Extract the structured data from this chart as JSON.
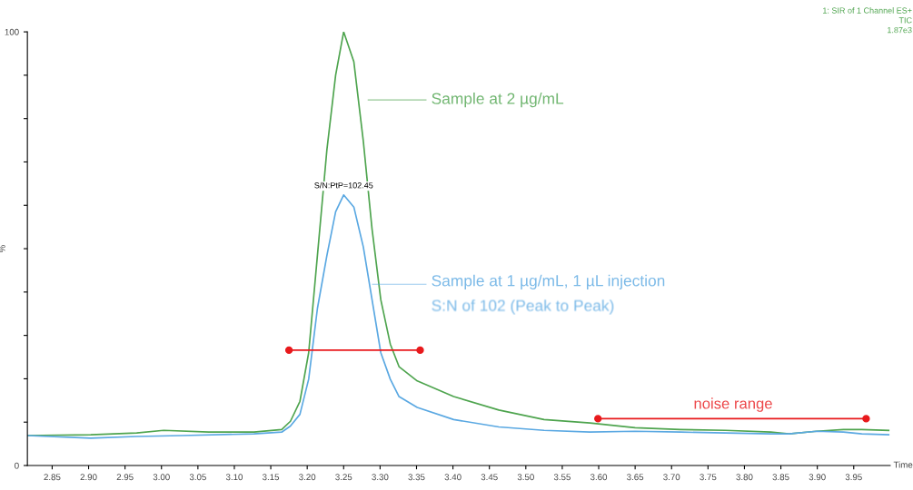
{
  "chart_data": {
    "type": "line",
    "xlabel": "Time",
    "ylabel": "%",
    "xlim": [
      2.816,
      4.0
    ],
    "ylim": [
      0,
      100
    ],
    "xticks": [
      2.85,
      {
        "value": 2.9,
        "label": "2.90"
      },
      2.95,
      {
        "value": 3.0,
        "label": "3.00"
      },
      3.05,
      {
        "value": 3.1,
        "label": "3.10"
      },
      3.15,
      {
        "value": 3.2,
        "label": "3.20"
      },
      3.25,
      {
        "value": 3.3,
        "label": "3.30"
      },
      3.35,
      {
        "value": 3.4,
        "label": "3.40"
      },
      3.45,
      {
        "value": 3.5,
        "label": "3.50"
      },
      3.55,
      {
        "value": 3.6,
        "label": "3.60"
      },
      3.65,
      {
        "value": 3.7,
        "label": "3.70"
      },
      3.75,
      {
        "value": 3.8,
        "label": "3.80"
      },
      3.85,
      {
        "value": 3.9,
        "label": "3.90"
      },
      3.95
    ],
    "yticks": [
      0,
      {
        "value": 10,
        "label": null
      },
      {
        "value": 20,
        "label": null
      },
      {
        "value": 30,
        "label": null
      },
      {
        "value": 40,
        "label": null
      },
      {
        "value": 50,
        "label": null
      },
      {
        "value": 60,
        "label": null
      },
      {
        "value": 70,
        "label": null
      },
      {
        "value": 80,
        "label": null
      },
      {
        "value": 90,
        "label": null
      },
      100
    ],
    "grid": false,
    "legend": false,
    "line_style": "solid",
    "series": [
      {
        "color": "#4ea44e",
        "marker": "none",
        "x": [
          2.816,
          2.903,
          2.966,
          3.003,
          3.065,
          3.127,
          3.165,
          3.177,
          3.19,
          3.202,
          3.214,
          3.227,
          3.239,
          3.25,
          3.264,
          3.277,
          3.289,
          3.301,
          3.314,
          3.326,
          3.351,
          3.401,
          3.463,
          3.525,
          3.588,
          3.65,
          3.712,
          3.774,
          3.836,
          3.861,
          3.899,
          3.936,
          3.961,
          3.998
        ],
        "values": [
          6.9,
          7.1,
          7.5,
          8.1,
          7.7,
          7.7,
          8.3,
          10.2,
          14.8,
          26.0,
          48.4,
          72.8,
          90.0,
          100,
          93.1,
          74.8,
          54.5,
          38.2,
          28.0,
          22.8,
          19.5,
          15.9,
          12.8,
          10.6,
          9.8,
          8.7,
          8.3,
          8.1,
          7.7,
          7.3,
          7.9,
          8.3,
          8.3,
          8.1
        ]
      },
      {
        "color": "#5aa8e2",
        "marker": "none",
        "x": [
          2.816,
          2.903,
          2.966,
          3.028,
          3.127,
          3.165,
          3.177,
          3.19,
          3.202,
          3.214,
          3.227,
          3.239,
          3.25,
          3.264,
          3.277,
          3.289,
          3.301,
          3.314,
          3.326,
          3.351,
          3.401,
          3.463,
          3.525,
          3.588,
          3.65,
          3.712,
          3.774,
          3.836,
          3.861,
          3.899,
          3.936,
          3.961,
          3.998
        ],
        "values": [
          6.9,
          6.3,
          6.7,
          6.9,
          7.3,
          7.7,
          9.1,
          11.8,
          19.9,
          36.2,
          48.4,
          58.5,
          62.4,
          59.6,
          50.4,
          38.2,
          26.0,
          19.9,
          15.9,
          13.4,
          10.6,
          8.9,
          8.1,
          7.7,
          7.9,
          7.7,
          7.5,
          7.3,
          7.3,
          7.9,
          7.7,
          7.3,
          7.1
        ]
      },
      {
        "color": "#e8191c",
        "marker": "circle",
        "x": [
          3.175,
          3.355
        ],
        "values": [
          26.6,
          26.6
        ]
      },
      {
        "color": "#e8191c",
        "marker": "circle",
        "x": [
          3.599,
          3.967
        ],
        "values": [
          10.8,
          10.8
        ]
      }
    ],
    "annotations": [
      "1: SIR of 1 Channel ES+",
      "TIC",
      "1.87e3",
      {
        "text": "S/N:PtP=102.45",
        "x": 3.25,
        "y": 62.4
      },
      "Sample at 2 µg/mL",
      "Sample at 1 µg/mL, 1 µL injection\nS:N of 102 (Peak to Peak)",
      "noise range"
    ]
  }
}
